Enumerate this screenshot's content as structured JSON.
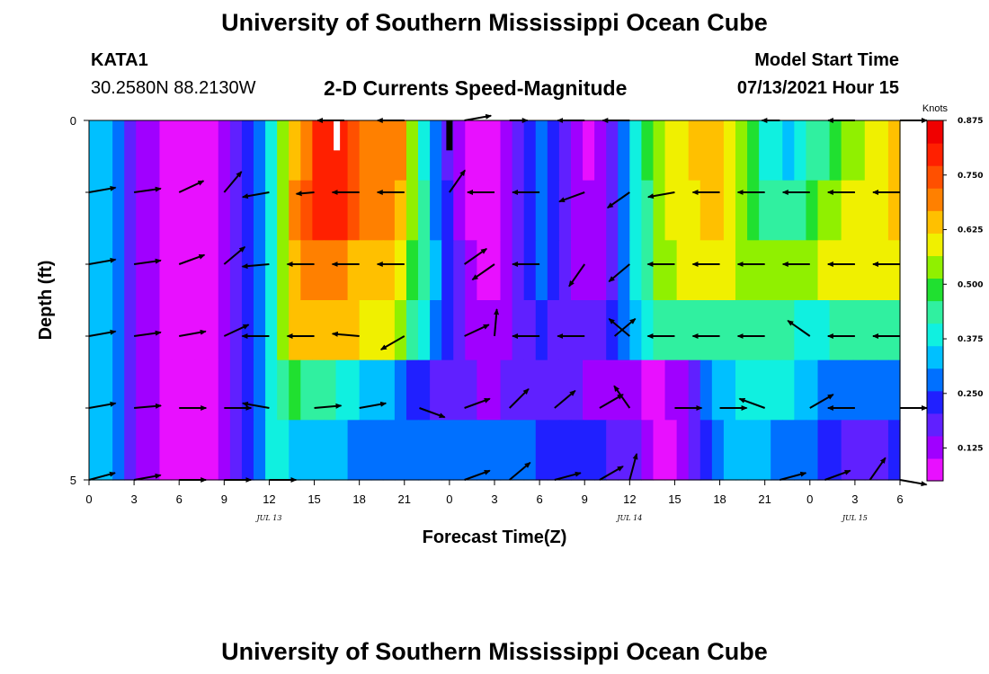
{
  "header": {
    "title": "University of Southern Mississippi Ocean Cube",
    "station_id": "KATA1",
    "station_coords": "30.2580N  88.2130W",
    "plot_title": "2-D Currents Speed-Magnitude",
    "model_start_label": "Model Start Time",
    "model_start_value": "07/13/2021 Hour 15"
  },
  "footer": {
    "title": "University of Southern Mississippi Ocean Cube"
  },
  "colors": {
    "palette": [
      "#e810ff",
      "#a000ff",
      "#6020ff",
      "#2020ff",
      "#0070ff",
      "#00c0ff",
      "#10f0e0",
      "#30f0a0",
      "#20e030",
      "#90f000",
      "#f0f000",
      "#ffc000",
      "#ff8000",
      "#ff5000",
      "#ff2000",
      "#f00000"
    ],
    "arrow": "#000000",
    "missing_white": "#ffffff",
    "missing_black": "#000000"
  },
  "chart_data": {
    "type": "heatmap",
    "ylabel": "Depth (ft)",
    "xlabel": "Forecast Time(Z)",
    "y_ticks": [
      "0",
      "5"
    ],
    "ylim": [
      0,
      5
    ],
    "x_ticks": [
      "0",
      "3",
      "6",
      "9",
      "12",
      "15",
      "18",
      "21",
      "0",
      "3",
      "6",
      "9",
      "12",
      "15",
      "18",
      "21",
      "0",
      "3",
      "6"
    ],
    "x_hours": [
      0,
      54
    ],
    "date_labels": [
      {
        "hour": 12,
        "text": "JUL 13"
      },
      {
        "hour": 36,
        "text": "JUL 14"
      },
      {
        "hour": 51,
        "text": "JUL 15"
      }
    ],
    "depth_layers": [
      0.25,
      1.0,
      2.0,
      3.0,
      4.0,
      4.75
    ],
    "speed_knots": [
      [
        0.35,
        0.33,
        0.26,
        0.18,
        0.13,
        0.11,
        0.1,
        0.1,
        0.1,
        0.1,
        0.1,
        0.12,
        0.16,
        0.24,
        0.3,
        0.4,
        0.55,
        0.65,
        0.72,
        0.78,
        0.8,
        0.78,
        0.75,
        0.7,
        0.72,
        0.72,
        0.68,
        0.55,
        0.4,
        0.28,
        0.2,
        0.12,
        0.08,
        0.07,
        0.09,
        0.12,
        0.18,
        0.24,
        0.28,
        0.24,
        0.16,
        0.12,
        0.1,
        0.12,
        0.16,
        0.28,
        0.38,
        0.5,
        0.56,
        0.6,
        0.6,
        0.62,
        0.62,
        0.62,
        0.6,
        0.55,
        0.48,
        0.4,
        0.36,
        0.35,
        0.4,
        0.44,
        0.46,
        0.5,
        0.52,
        0.55,
        0.58,
        0.6,
        0.62
      ],
      [
        0.35,
        0.33,
        0.26,
        0.18,
        0.13,
        0.11,
        0.1,
        0.1,
        0.1,
        0.1,
        0.1,
        0.12,
        0.16,
        0.24,
        0.3,
        0.4,
        0.55,
        0.7,
        0.76,
        0.8,
        0.8,
        0.78,
        0.76,
        0.72,
        0.72,
        0.7,
        0.65,
        0.55,
        0.42,
        0.3,
        0.22,
        0.14,
        0.09,
        0.08,
        0.09,
        0.12,
        0.18,
        0.24,
        0.28,
        0.24,
        0.18,
        0.14,
        0.12,
        0.14,
        0.18,
        0.28,
        0.36,
        0.46,
        0.55,
        0.58,
        0.6,
        0.6,
        0.62,
        0.62,
        0.6,
        0.55,
        0.5,
        0.45,
        0.42,
        0.42,
        0.46,
        0.5,
        0.54,
        0.56,
        0.58,
        0.58,
        0.6,
        0.6,
        0.62
      ],
      [
        0.35,
        0.33,
        0.26,
        0.18,
        0.13,
        0.11,
        0.1,
        0.1,
        0.1,
        0.1,
        0.1,
        0.12,
        0.16,
        0.24,
        0.3,
        0.4,
        0.52,
        0.65,
        0.68,
        0.68,
        0.68,
        0.68,
        0.66,
        0.64,
        0.64,
        0.62,
        0.58,
        0.5,
        0.42,
        0.32,
        0.24,
        0.16,
        0.12,
        0.1,
        0.1,
        0.12,
        0.16,
        0.22,
        0.26,
        0.22,
        0.16,
        0.12,
        0.12,
        0.14,
        0.18,
        0.28,
        0.36,
        0.44,
        0.52,
        0.56,
        0.58,
        0.58,
        0.6,
        0.6,
        0.58,
        0.56,
        0.54,
        0.52,
        0.52,
        0.52,
        0.54,
        0.56,
        0.58,
        0.58,
        0.58,
        0.58,
        0.58,
        0.6,
        0.6
      ],
      [
        0.35,
        0.33,
        0.26,
        0.18,
        0.13,
        0.11,
        0.1,
        0.1,
        0.1,
        0.1,
        0.1,
        0.12,
        0.16,
        0.24,
        0.3,
        0.4,
        0.52,
        0.62,
        0.64,
        0.64,
        0.64,
        0.64,
        0.62,
        0.6,
        0.6,
        0.58,
        0.54,
        0.46,
        0.38,
        0.3,
        0.24,
        0.18,
        0.14,
        0.12,
        0.12,
        0.14,
        0.16,
        0.2,
        0.22,
        0.2,
        0.18,
        0.16,
        0.16,
        0.18,
        0.22,
        0.28,
        0.34,
        0.4,
        0.44,
        0.46,
        0.46,
        0.46,
        0.46,
        0.46,
        0.46,
        0.46,
        0.46,
        0.46,
        0.44,
        0.42,
        0.4,
        0.4,
        0.4,
        0.42,
        0.42,
        0.44,
        0.44,
        0.42,
        0.42
      ],
      [
        0.35,
        0.33,
        0.26,
        0.18,
        0.13,
        0.11,
        0.1,
        0.1,
        0.1,
        0.1,
        0.1,
        0.12,
        0.16,
        0.24,
        0.3,
        0.4,
        0.46,
        0.48,
        0.46,
        0.44,
        0.44,
        0.4,
        0.36,
        0.34,
        0.34,
        0.32,
        0.28,
        0.24,
        0.22,
        0.2,
        0.18,
        0.16,
        0.16,
        0.15,
        0.15,
        0.16,
        0.16,
        0.17,
        0.18,
        0.17,
        0.16,
        0.16,
        0.15,
        0.14,
        0.14,
        0.14,
        0.12,
        0.1,
        0.1,
        0.12,
        0.14,
        0.2,
        0.28,
        0.32,
        0.34,
        0.36,
        0.38,
        0.38,
        0.37,
        0.36,
        0.34,
        0.32,
        0.3,
        0.3,
        0.28,
        0.28,
        0.26,
        0.26,
        0.26
      ],
      [
        0.35,
        0.33,
        0.26,
        0.18,
        0.13,
        0.11,
        0.1,
        0.1,
        0.1,
        0.1,
        0.1,
        0.12,
        0.16,
        0.24,
        0.3,
        0.36,
        0.36,
        0.34,
        0.34,
        0.34,
        0.34,
        0.32,
        0.3,
        0.28,
        0.28,
        0.28,
        0.28,
        0.27,
        0.26,
        0.26,
        0.26,
        0.26,
        0.26,
        0.26,
        0.26,
        0.26,
        0.26,
        0.26,
        0.25,
        0.25,
        0.25,
        0.25,
        0.24,
        0.22,
        0.2,
        0.18,
        0.16,
        0.12,
        0.1,
        0.08,
        0.12,
        0.18,
        0.24,
        0.3,
        0.32,
        0.32,
        0.32,
        0.32,
        0.3,
        0.3,
        0.28,
        0.26,
        0.24,
        0.22,
        0.2,
        0.18,
        0.18,
        0.2,
        0.22
      ]
    ],
    "missing_columns": [
      {
        "hour": 16.5,
        "layer": 0,
        "color": "white"
      },
      {
        "hour": 24.0,
        "layer": 0,
        "color": "black"
      }
    ],
    "vectors": [
      {
        "hour": 0,
        "depth": 0,
        "dir": 0,
        "len": 0.0
      },
      {
        "hour": 17,
        "depth": 0,
        "dir": 180,
        "len": 0.3
      },
      {
        "hour": 21,
        "depth": 0,
        "dir": 180,
        "len": 0.3
      },
      {
        "hour": 25,
        "depth": 0,
        "dir": 10,
        "len": 0.3
      },
      {
        "hour": 28,
        "depth": 0,
        "dir": 0,
        "len": 0.2
      },
      {
        "hour": 33,
        "depth": 0,
        "dir": 180,
        "len": 0.3
      },
      {
        "hour": 36,
        "depth": 0,
        "dir": 180,
        "len": 0.3
      },
      {
        "hour": 46,
        "depth": 0,
        "dir": 180,
        "len": 0.2
      },
      {
        "hour": 51,
        "depth": 0,
        "dir": 180,
        "len": 0.3
      },
      {
        "hour": 54,
        "depth": 0,
        "dir": 0,
        "len": 0.3
      },
      {
        "hour": 0,
        "depth": 1,
        "dir": 10,
        "len": 0.3
      },
      {
        "hour": 3,
        "depth": 1,
        "dir": 8,
        "len": 0.3
      },
      {
        "hour": 6,
        "depth": 1,
        "dir": 25,
        "len": 0.3
      },
      {
        "hour": 9,
        "depth": 1,
        "dir": 50,
        "len": 0.3
      },
      {
        "hour": 12,
        "depth": 1,
        "dir": 190,
        "len": 0.3
      },
      {
        "hour": 15,
        "depth": 1,
        "dir": 185,
        "len": 0.2
      },
      {
        "hour": 18,
        "depth": 1,
        "dir": 180,
        "len": 0.3
      },
      {
        "hour": 21,
        "depth": 1,
        "dir": 180,
        "len": 0.3
      },
      {
        "hour": 24,
        "depth": 1,
        "dir": 55,
        "len": 0.3
      },
      {
        "hour": 27,
        "depth": 1,
        "dir": 180,
        "len": 0.3
      },
      {
        "hour": 30,
        "depth": 1,
        "dir": 180,
        "len": 0.3
      },
      {
        "hour": 33,
        "depth": 1,
        "dir": 200,
        "len": 0.3
      },
      {
        "hour": 36,
        "depth": 1,
        "dir": 215,
        "len": 0.3
      },
      {
        "hour": 39,
        "depth": 1,
        "dir": 190,
        "len": 0.3
      },
      {
        "hour": 42,
        "depth": 1,
        "dir": 180,
        "len": 0.3
      },
      {
        "hour": 45,
        "depth": 1,
        "dir": 180,
        "len": 0.3
      },
      {
        "hour": 48,
        "depth": 1,
        "dir": 180,
        "len": 0.3
      },
      {
        "hour": 51,
        "depth": 1,
        "dir": 180,
        "len": 0.3
      },
      {
        "hour": 54,
        "depth": 1,
        "dir": 180,
        "len": 0.3
      },
      {
        "hour": 0,
        "depth": 2,
        "dir": 10,
        "len": 0.3
      },
      {
        "hour": 3,
        "depth": 2,
        "dir": 8,
        "len": 0.3
      },
      {
        "hour": 6,
        "depth": 2,
        "dir": 20,
        "len": 0.3
      },
      {
        "hour": 9,
        "depth": 2,
        "dir": 40,
        "len": 0.3
      },
      {
        "hour": 12,
        "depth": 2,
        "dir": 185,
        "len": 0.3
      },
      {
        "hour": 15,
        "depth": 2,
        "dir": 180,
        "len": 0.3
      },
      {
        "hour": 18,
        "depth": 2,
        "dir": 180,
        "len": 0.3
      },
      {
        "hour": 21,
        "depth": 2,
        "dir": 180,
        "len": 0.3
      },
      {
        "hour": 25,
        "depth": 2,
        "dir": 35,
        "len": 0.3
      },
      {
        "hour": 27,
        "depth": 2,
        "dir": 215,
        "len": 0.3
      },
      {
        "hour": 30,
        "depth": 2,
        "dir": 180,
        "len": 0.3
      },
      {
        "hour": 33,
        "depth": 2,
        "dir": 235,
        "len": 0.3
      },
      {
        "hour": 36,
        "depth": 2,
        "dir": 220,
        "len": 0.3
      },
      {
        "hour": 39,
        "depth": 2,
        "dir": 180,
        "len": 0.3
      },
      {
        "hour": 42,
        "depth": 2,
        "dir": 180,
        "len": 0.3
      },
      {
        "hour": 45,
        "depth": 2,
        "dir": 180,
        "len": 0.3
      },
      {
        "hour": 48,
        "depth": 2,
        "dir": 180,
        "len": 0.3
      },
      {
        "hour": 51,
        "depth": 2,
        "dir": 180,
        "len": 0.3
      },
      {
        "hour": 54,
        "depth": 2,
        "dir": 180,
        "len": 0.3
      },
      {
        "hour": 0,
        "depth": 3,
        "dir": 10,
        "len": 0.3
      },
      {
        "hour": 3,
        "depth": 3,
        "dir": 8,
        "len": 0.3
      },
      {
        "hour": 6,
        "depth": 3,
        "dir": 10,
        "len": 0.3
      },
      {
        "hour": 9,
        "depth": 3,
        "dir": 25,
        "len": 0.3
      },
      {
        "hour": 12,
        "depth": 3,
        "dir": 180,
        "len": 0.3
      },
      {
        "hour": 15,
        "depth": 3,
        "dir": 180,
        "len": 0.3
      },
      {
        "hour": 18,
        "depth": 3,
        "dir": 175,
        "len": 0.3
      },
      {
        "hour": 21,
        "depth": 3,
        "dir": 210,
        "len": 0.3
      },
      {
        "hour": 25,
        "depth": 3,
        "dir": 25,
        "len": 0.3
      },
      {
        "hour": 27,
        "depth": 3,
        "dir": 85,
        "len": 0.3
      },
      {
        "hour": 30,
        "depth": 3,
        "dir": 180,
        "len": 0.3
      },
      {
        "hour": 33,
        "depth": 3,
        "dir": 180,
        "len": 0.3
      },
      {
        "hour": 35,
        "depth": 3,
        "dir": 40,
        "len": 0.3
      },
      {
        "hour": 36,
        "depth": 3,
        "dir": 140,
        "len": 0.3
      },
      {
        "hour": 39,
        "depth": 3,
        "dir": 180,
        "len": 0.3
      },
      {
        "hour": 42,
        "depth": 3,
        "dir": 180,
        "len": 0.3
      },
      {
        "hour": 45,
        "depth": 3,
        "dir": 180,
        "len": 0.3
      },
      {
        "hour": 48,
        "depth": 3,
        "dir": 145,
        "len": 0.3
      },
      {
        "hour": 51,
        "depth": 3,
        "dir": 180,
        "len": 0.3
      },
      {
        "hour": 54,
        "depth": 3,
        "dir": 180,
        "len": 0.3
      },
      {
        "hour": 0,
        "depth": 4,
        "dir": 10,
        "len": 0.3
      },
      {
        "hour": 3,
        "depth": 4,
        "dir": 5,
        "len": 0.3
      },
      {
        "hour": 6,
        "depth": 4,
        "dir": 0,
        "len": 0.3
      },
      {
        "hour": 9,
        "depth": 4,
        "dir": 0,
        "len": 0.3
      },
      {
        "hour": 12,
        "depth": 4,
        "dir": 170,
        "len": 0.3
      },
      {
        "hour": 15,
        "depth": 4,
        "dir": 5,
        "len": 0.3
      },
      {
        "hour": 18,
        "depth": 4,
        "dir": 10,
        "len": 0.3
      },
      {
        "hour": 22,
        "depth": 4,
        "dir": -20,
        "len": 0.3
      },
      {
        "hour": 25,
        "depth": 4,
        "dir": 20,
        "len": 0.3
      },
      {
        "hour": 28,
        "depth": 4,
        "dir": 45,
        "len": 0.3
      },
      {
        "hour": 31,
        "depth": 4,
        "dir": 40,
        "len": 0.3
      },
      {
        "hour": 34,
        "depth": 4,
        "dir": 30,
        "len": 0.3
      },
      {
        "hour": 36,
        "depth": 4,
        "dir": 125,
        "len": 0.3
      },
      {
        "hour": 39,
        "depth": 4,
        "dir": 0,
        "len": 0.3
      },
      {
        "hour": 42,
        "depth": 4,
        "dir": 0,
        "len": 0.3
      },
      {
        "hour": 45,
        "depth": 4,
        "dir": 160,
        "len": 0.3
      },
      {
        "hour": 48,
        "depth": 4,
        "dir": 30,
        "len": 0.3
      },
      {
        "hour": 51,
        "depth": 4,
        "dir": 180,
        "len": 0.3
      },
      {
        "hour": 54,
        "depth": 4,
        "dir": 0,
        "len": 0.3
      },
      {
        "hour": 0,
        "depth": 5,
        "dir": 15,
        "len": 0.3
      },
      {
        "hour": 3,
        "depth": 5,
        "dir": 10,
        "len": 0.3
      },
      {
        "hour": 6,
        "depth": 5,
        "dir": 0,
        "len": 0.3
      },
      {
        "hour": 9,
        "depth": 5,
        "dir": 0,
        "len": 0.3
      },
      {
        "hour": 12,
        "depth": 5,
        "dir": 0,
        "len": 0.3
      },
      {
        "hour": 25,
        "depth": 5,
        "dir": 20,
        "len": 0.3
      },
      {
        "hour": 28,
        "depth": 5,
        "dir": 40,
        "len": 0.3
      },
      {
        "hour": 31,
        "depth": 5,
        "dir": 15,
        "len": 0.3
      },
      {
        "hour": 34,
        "depth": 5,
        "dir": 30,
        "len": 0.3
      },
      {
        "hour": 36,
        "depth": 5,
        "dir": 75,
        "len": 0.3
      },
      {
        "hour": 46,
        "depth": 5,
        "dir": 15,
        "len": 0.3
      },
      {
        "hour": 49,
        "depth": 5,
        "dir": 20,
        "len": 0.3
      },
      {
        "hour": 52,
        "depth": 5,
        "dir": 55,
        "len": 0.3
      },
      {
        "hour": 54,
        "depth": 5,
        "dir": -10,
        "len": 0.3
      }
    ],
    "colorbar": {
      "title": "Knots",
      "ticks": [
        "0.875",
        "0.750",
        "0.625",
        "0.500",
        "0.375",
        "0.250",
        "0.125"
      ],
      "min": 0.05,
      "max": 0.875
    }
  }
}
